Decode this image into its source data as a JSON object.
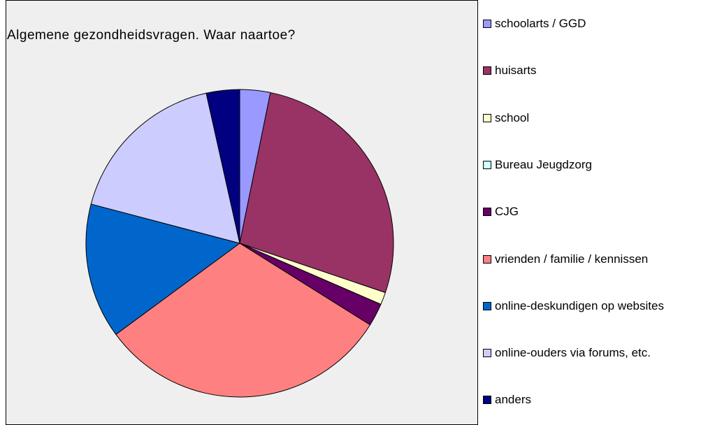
{
  "chart_data": {
    "type": "pie",
    "title": "Algemene gezondheidsvragen. Waar naartoe?",
    "categories": [
      "schoolarts / GGD",
      "huisarts",
      "school",
      "Bureau Jeugdzorg",
      "CJG",
      "vrienden / familie / kennissen",
      "online-deskundigen op websites",
      "online-ouders via forums, etc.",
      "anders"
    ],
    "values": [
      3.2,
      27,
      1.3,
      0,
      2.4,
      31,
      14.2,
      17.4,
      3.5
    ],
    "colors": [
      "#9999ff",
      "#993366",
      "#ffffcc",
      "#ccffff",
      "#660066",
      "#ff8080",
      "#0066cc",
      "#ccccff",
      "#000080"
    ],
    "legend": "right"
  }
}
